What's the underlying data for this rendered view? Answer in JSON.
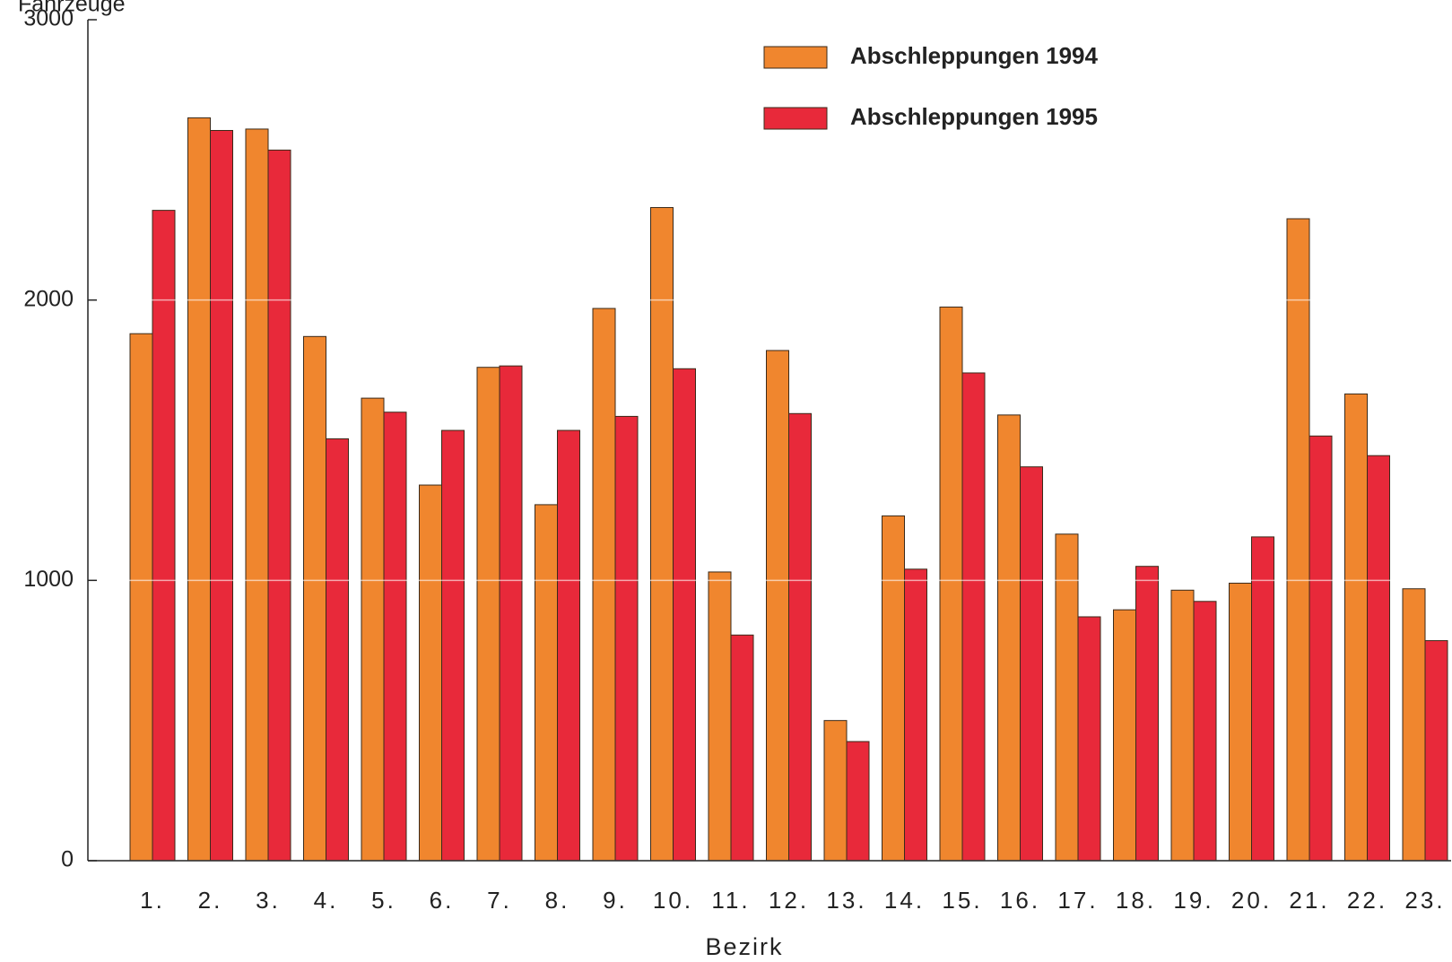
{
  "chart_data": {
    "type": "bar",
    "y_label": "Fahrzeuge",
    "x_label": "Bezirk",
    "categories": [
      "1.",
      "2.",
      "3.",
      "4.",
      "5.",
      "6.",
      "7.",
      "8.",
      "9.",
      "10.",
      "11.",
      "12.",
      "13.",
      "14.",
      "15.",
      "16.",
      "17.",
      "18.",
      "19.",
      "20.",
      "21.",
      "22.",
      "23."
    ],
    "series": [
      {
        "name": "Abschleppungen 1994",
        "color": "#f0862e",
        "values": [
          1880,
          2650,
          2610,
          1870,
          1650,
          1340,
          1760,
          1270,
          1970,
          2330,
          1030,
          1820,
          500,
          1230,
          1975,
          1590,
          1165,
          895,
          965,
          990,
          2290,
          1665,
          970
        ]
      },
      {
        "name": "Abschleppungen 1995",
        "color": "#e8293a",
        "values": [
          2320,
          2605,
          2535,
          1505,
          1600,
          1535,
          1765,
          1535,
          1585,
          1755,
          805,
          1595,
          425,
          1040,
          1740,
          1405,
          870,
          1050,
          925,
          1155,
          1515,
          1445,
          785
        ]
      }
    ],
    "ylim": [
      0,
      3000
    ],
    "yticks": [
      0,
      1000,
      2000,
      3000
    ],
    "grid": true,
    "legend": "top-right"
  }
}
